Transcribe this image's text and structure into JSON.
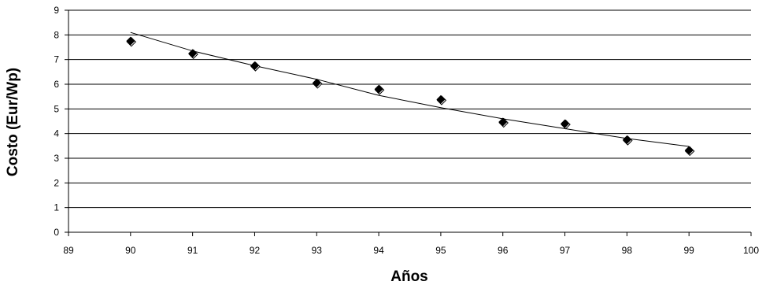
{
  "chart_data": {
    "type": "scatter",
    "title": "",
    "xlabel": "Años",
    "ylabel": "Costo (Eur/Wp)",
    "xlim": [
      89,
      100
    ],
    "ylim": [
      0,
      9
    ],
    "x_ticks": [
      "89",
      "90",
      "91",
      "92",
      "93",
      "94",
      "95",
      "96",
      "97",
      "98",
      "99",
      "100"
    ],
    "y_ticks": [
      "0",
      "1",
      "2",
      "3",
      "4",
      "5",
      "6",
      "7",
      "8",
      "9"
    ],
    "grid": "horizontal",
    "legend": "none",
    "marker": "diamond",
    "series": [
      {
        "x": [
          90,
          91,
          92,
          93,
          94,
          95,
          96,
          97,
          98,
          99
        ],
        "y": [
          7.75,
          7.25,
          6.75,
          6.05,
          5.8,
          5.38,
          4.47,
          4.4,
          3.75,
          3.32
        ]
      }
    ],
    "trendline": {
      "x": [
        90,
        91,
        92,
        93,
        94,
        95,
        96,
        97,
        98,
        99
      ],
      "y": [
        8.1,
        7.35,
        6.75,
        6.2,
        5.55,
        5.05,
        4.6,
        4.2,
        3.8,
        3.48
      ]
    },
    "colors": {
      "marker": "#000000",
      "line": "#000000",
      "grid": "#000000"
    }
  }
}
